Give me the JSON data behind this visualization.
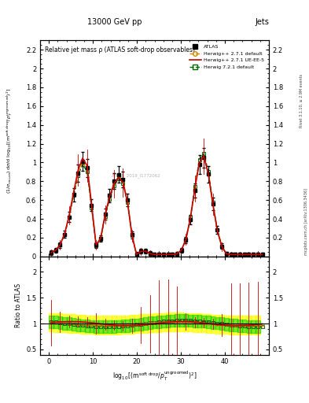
{
  "title_top": "13000 GeV pp",
  "title_right": "Jets",
  "plot_title": "Relative jet mass ρ (ATLAS soft-drop observables)",
  "xlabel": "log_{10}[(m^{soft drop}/p_T^{ungroomed})^2]",
  "ylabel_main": "(1/σ_{resum}) dσ/d log_{10}[(m^{soft drop}/p_T^{ungroomed})^2]",
  "ylabel_ratio": "Ratio to ATLAS",
  "xlim": [
    -2,
    50
  ],
  "ylim_main": [
    0,
    2.3
  ],
  "ylim_ratio": [
    0.4,
    2.3
  ],
  "right_label_top": "Rivet 3.1.10, ≥ 2.9M events",
  "right_label_bottom": "mcplots.cern.ch [arXiv:1306.3436]",
  "watermark": "ATLAS_2019_I1772062",
  "atlas_color": "#000000",
  "hw271_color": "#cc8800",
  "hw271ue_color": "#cc0000",
  "hw721_color": "#006600",
  "band_yellow": "#ffff00",
  "band_green": "#00cc00",
  "xticks": [
    0,
    10,
    20,
    30,
    40
  ],
  "yticks_main": [
    0,
    0.2,
    0.4,
    0.6,
    0.8,
    1.0,
    1.2,
    1.4,
    1.6,
    1.8,
    2.0,
    2.2
  ],
  "yticks_ratio": [
    0.5,
    1.0,
    1.5,
    2.0
  ]
}
